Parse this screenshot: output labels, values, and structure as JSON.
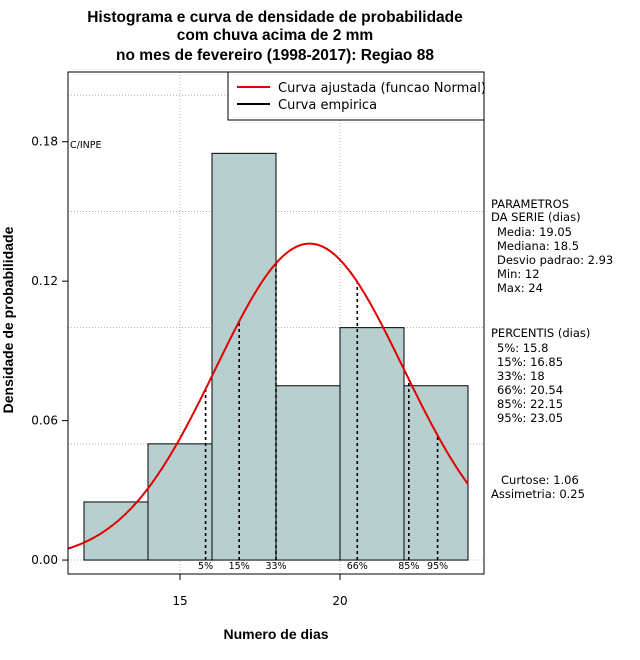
{
  "chart_data": {
    "type": "bar",
    "title": [
      "Histograma e curva de densidade de probabilidade",
      "com chuva acima de 2 mm",
      "no mes de fevereiro (1998-2017): Regiao 88"
    ],
    "xlabel": "Numero de dias",
    "ylabel": "Densidade de probabilidade",
    "xlim": [
      11.5,
      24.5
    ],
    "ylim": [
      -0.006,
      0.21
    ],
    "x_ticks": [
      15,
      20
    ],
    "y_ticks": [
      0.0,
      0.06,
      0.12,
      0.18
    ],
    "y_tick_labels": [
      "0.00",
      "0.06",
      "0.12",
      "0.18"
    ],
    "grid_y": [
      0.05,
      0.1,
      0.15,
      0.2
    ],
    "bins": [
      {
        "from": 12,
        "to": 14,
        "density": 0.025
      },
      {
        "from": 14,
        "to": 16,
        "density": 0.05
      },
      {
        "from": 16,
        "to": 18,
        "density": 0.175
      },
      {
        "from": 18,
        "to": 20,
        "density": 0.075
      },
      {
        "from": 20,
        "to": 22,
        "density": 0.1
      },
      {
        "from": 22,
        "to": 24,
        "density": 0.075
      }
    ],
    "normal_curve": {
      "mean": 19.05,
      "sd": 2.93,
      "x_range": [
        11.5,
        24
      ],
      "color": "#e00000"
    },
    "percentiles": [
      {
        "label": "5%",
        "value": 15.8
      },
      {
        "label": "15%",
        "value": 16.85
      },
      {
        "label": "33%",
        "value": 18
      },
      {
        "label": "66%",
        "value": 20.54
      },
      {
        "label": "85%",
        "value": 22.15
      },
      {
        "label": "95%",
        "value": 23.05
      }
    ],
    "legend": [
      {
        "label": "Curva ajustada (funcao Normal)",
        "color": "#e00000"
      },
      {
        "label": "Curva empirica",
        "color": "#000000"
      }
    ],
    "legend_position": "top-right",
    "credit": "C/INPE",
    "bar_color": "#b8cfcf"
  },
  "stats": {
    "params_title": [
      "PARAMETROS",
      "DA SERIE (dias)"
    ],
    "params": [
      "Media: 19.05",
      "Mediana: 18.5",
      "Desvio padrao: 2.93",
      "Min: 12",
      "Max: 24"
    ],
    "percentis_title": "PERCENTIS (dias)",
    "percentis": [
      "5%: 15.8",
      "15%: 16.85",
      "33%: 18",
      "66%: 20.54",
      "85%: 22.15",
      "95%: 23.05"
    ],
    "shape": [
      "Curtose: 1.06",
      "Assimetria: 0.25"
    ]
  }
}
